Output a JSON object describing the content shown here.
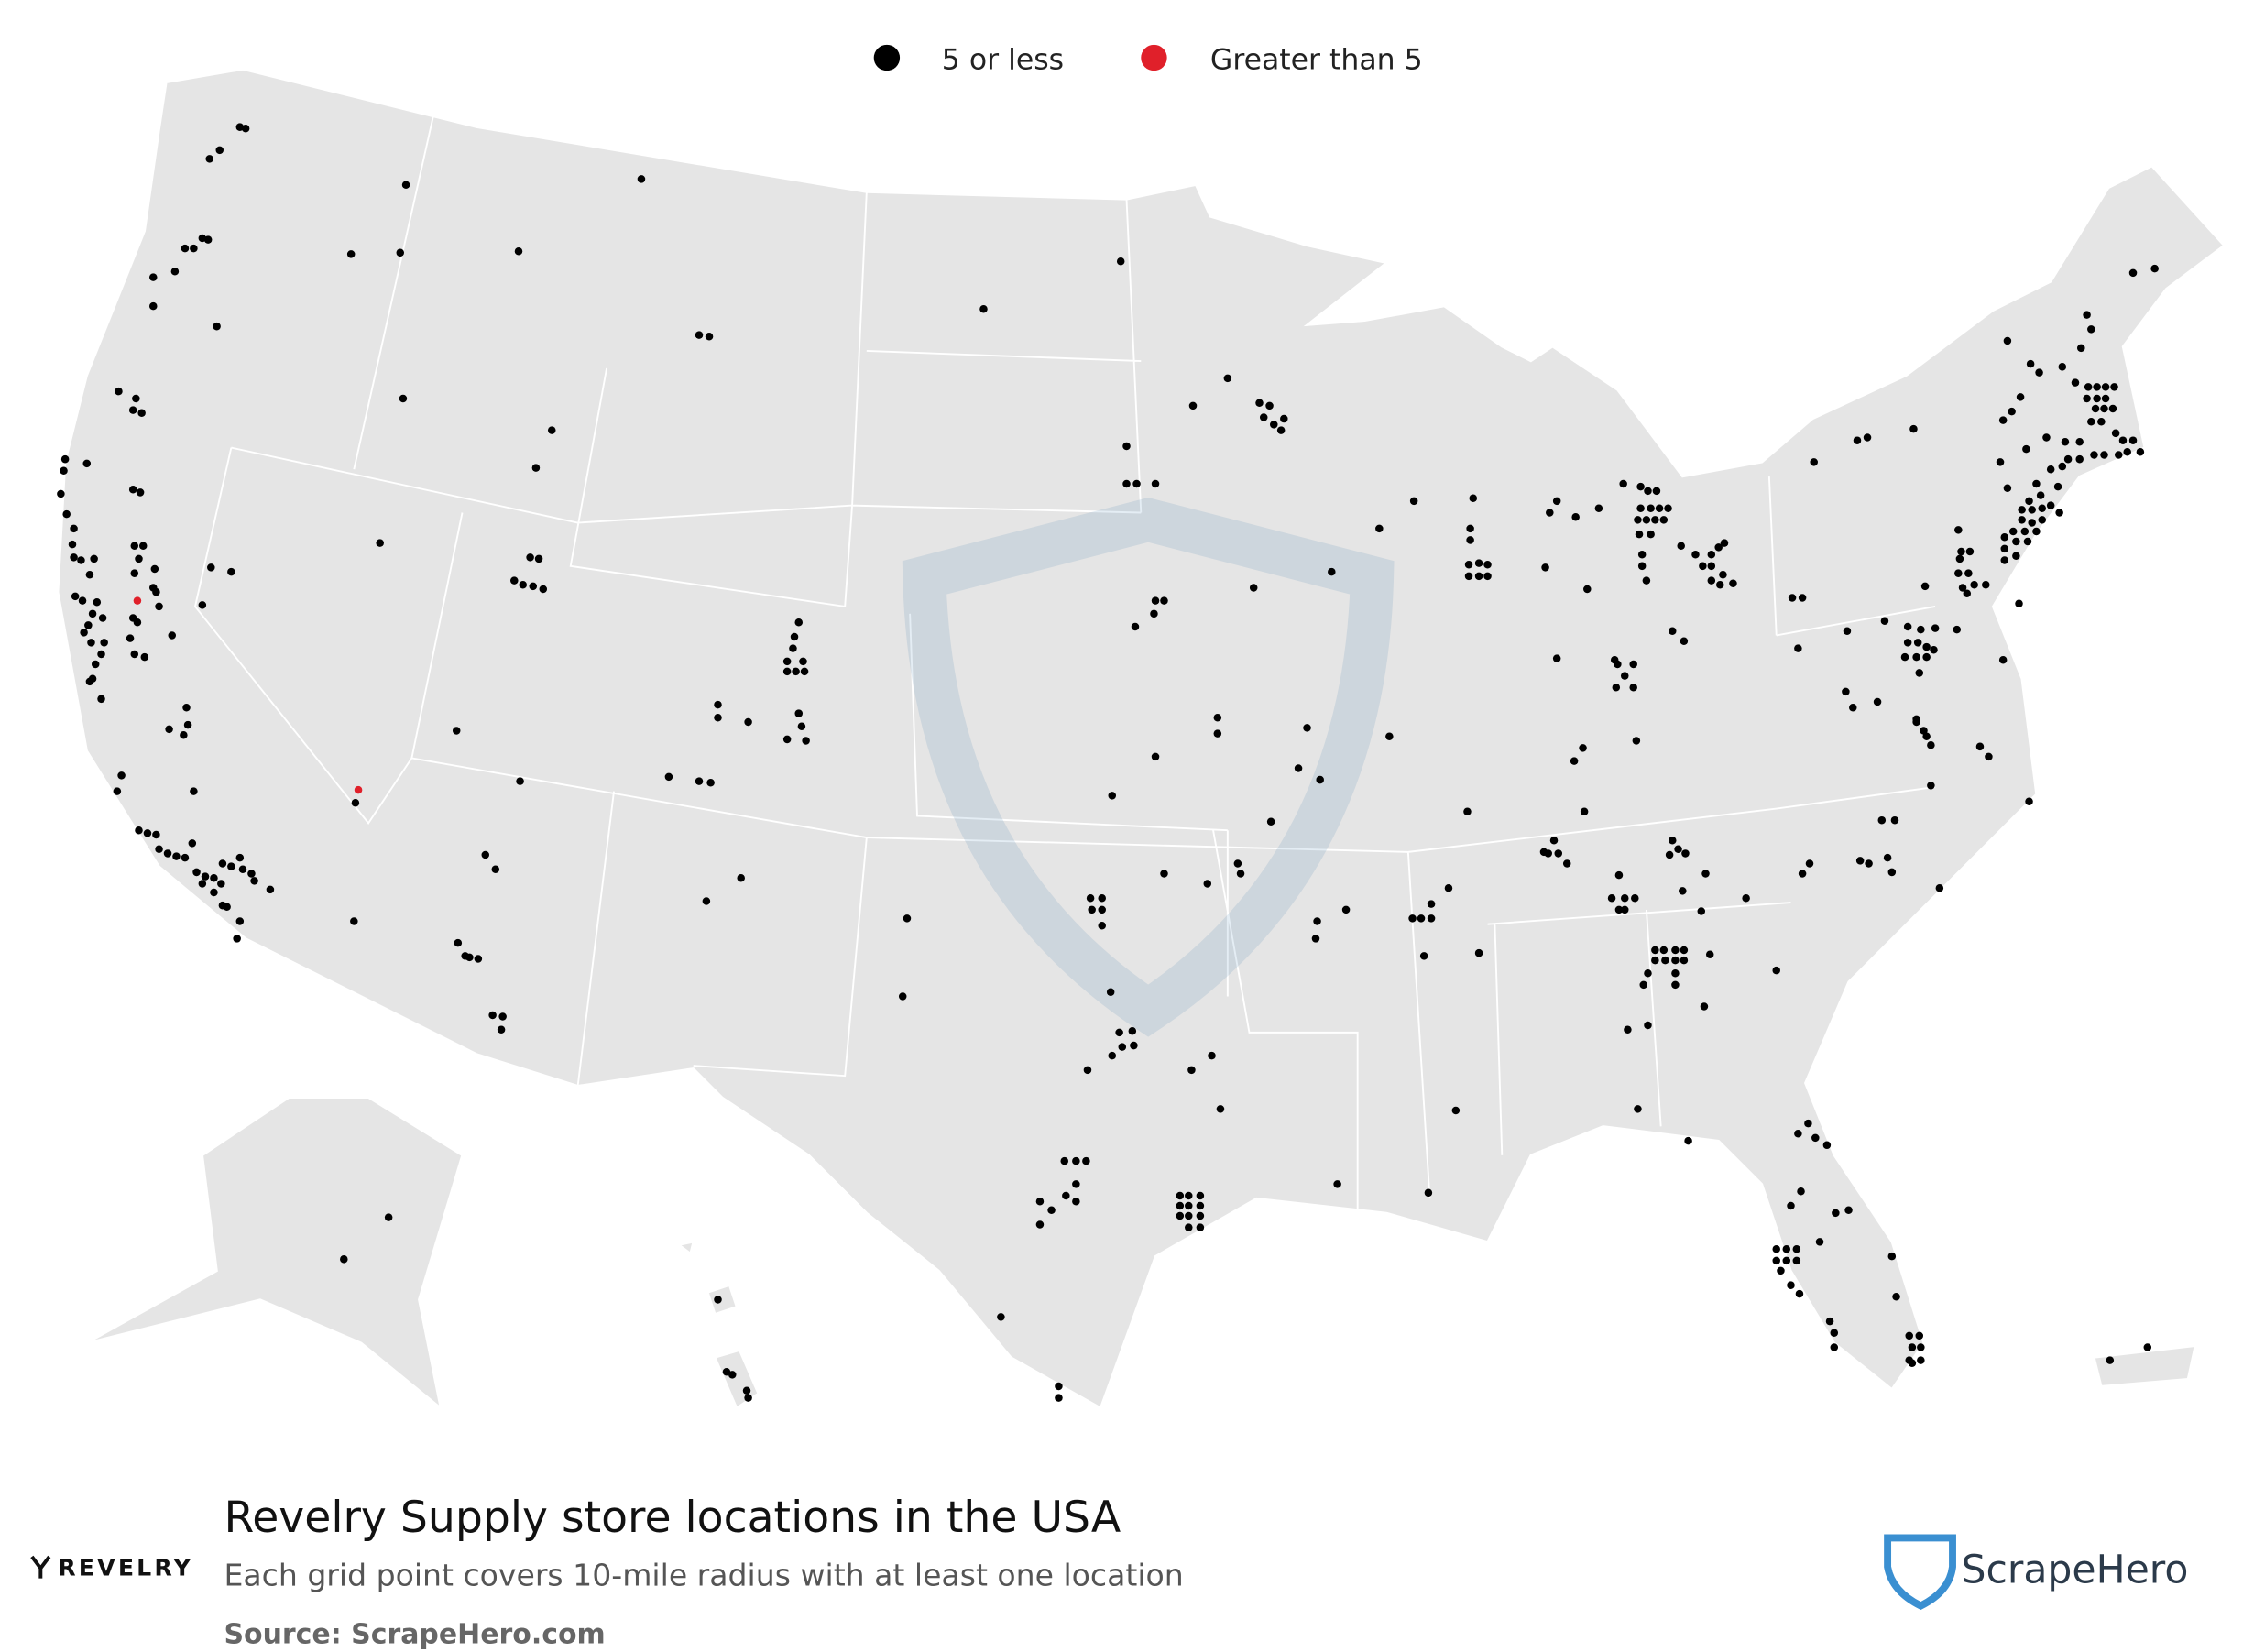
{
  "legend": {
    "items": [
      {
        "label": "5 or less",
        "color": "#000000"
      },
      {
        "label": "Greater than 5",
        "color": "#e0202a"
      }
    ]
  },
  "footer": {
    "title": "Revelry Supply store locations in the USA",
    "subtitle": "Each grid point covers 10-mile radius with at least one location",
    "source": "Source: ScrapeHero.com",
    "brand": "REVELRY",
    "publisher": "ScrapeHero"
  }
}
